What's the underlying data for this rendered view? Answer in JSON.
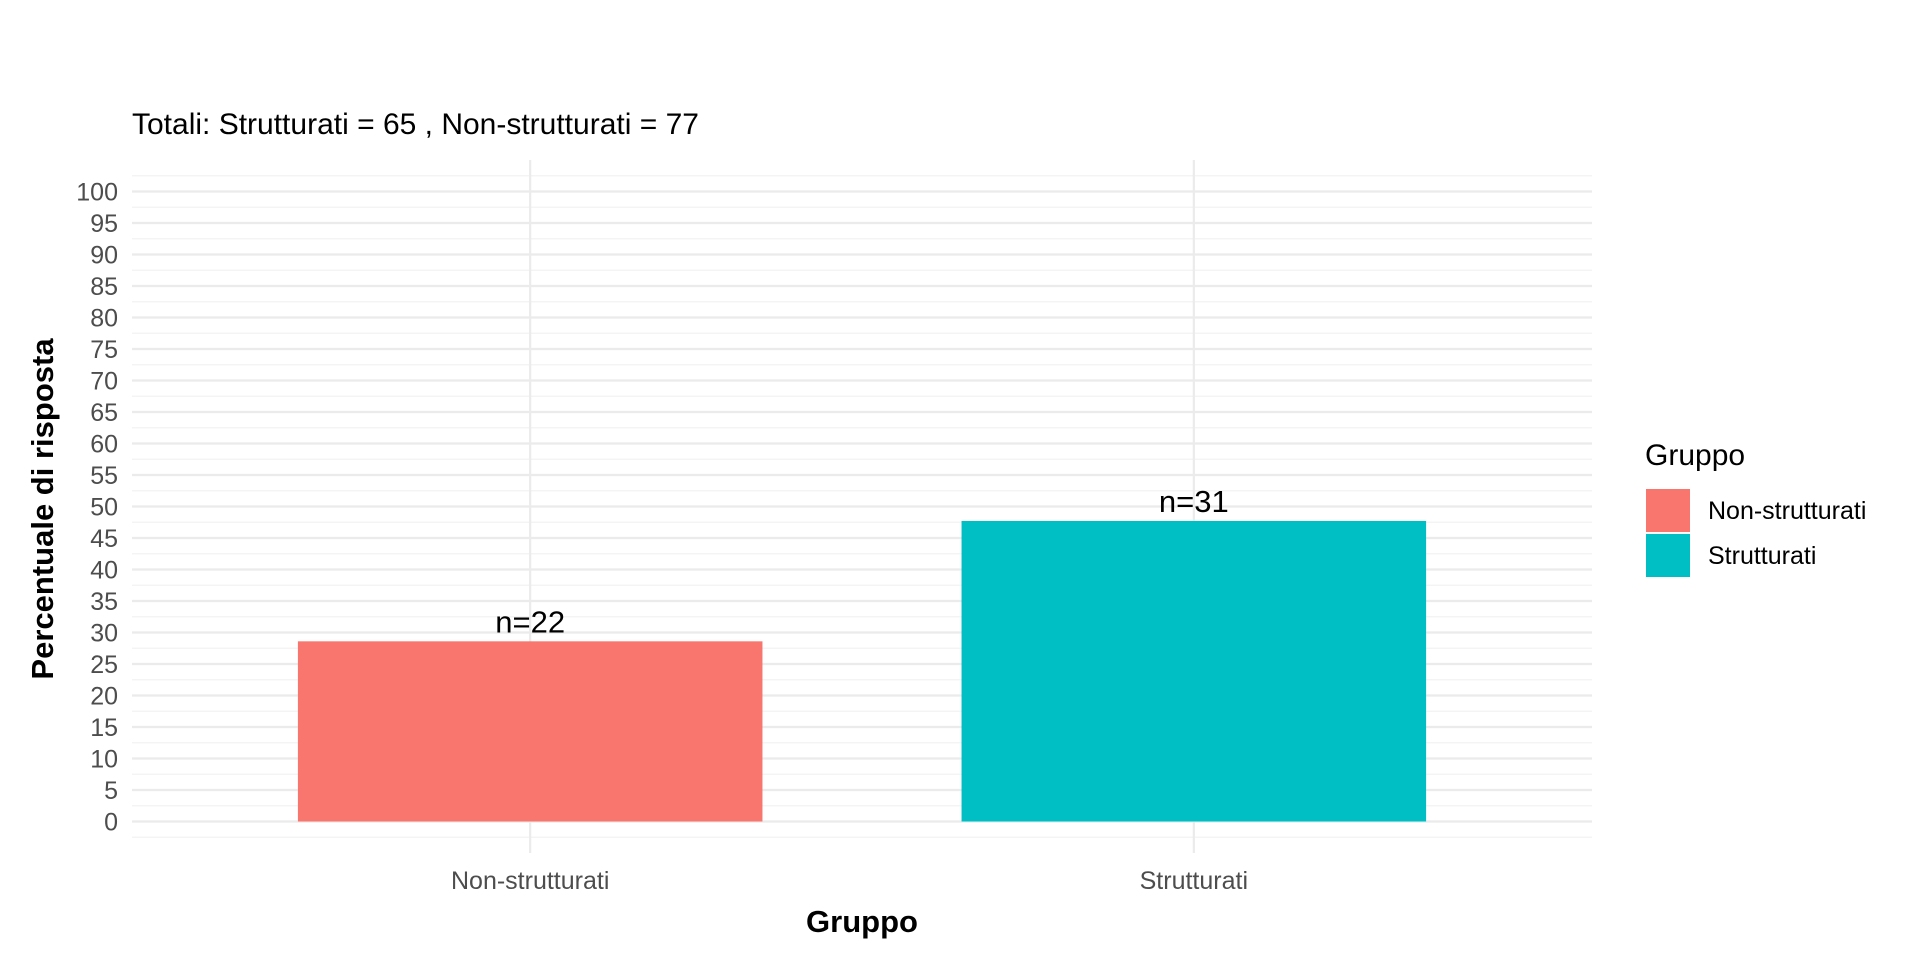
{
  "chart_data": {
    "type": "bar",
    "subtitle": "Totali: Strutturati = 65 , Non-strutturati = 77",
    "xlabel": "Gruppo",
    "ylabel": "Percentuale di risposta",
    "categories": [
      "Non-strutturati",
      "Strutturati"
    ],
    "values": [
      28.6,
      47.7
    ],
    "data_labels": [
      "n=22",
      "n=31"
    ],
    "colors": [
      "#F8766D",
      "#00BFC4"
    ],
    "ylim": [
      -5,
      105
    ],
    "yticks": [
      0,
      5,
      10,
      15,
      20,
      25,
      30,
      35,
      40,
      45,
      50,
      55,
      60,
      65,
      70,
      75,
      80,
      85,
      90,
      95,
      100
    ],
    "grid": true,
    "legend": {
      "title": "Gruppo",
      "position": "right",
      "entries": [
        {
          "label": "Non-strutturati",
          "color": "#F8766D"
        },
        {
          "label": "Strutturati",
          "color": "#00BFC4"
        }
      ]
    }
  }
}
